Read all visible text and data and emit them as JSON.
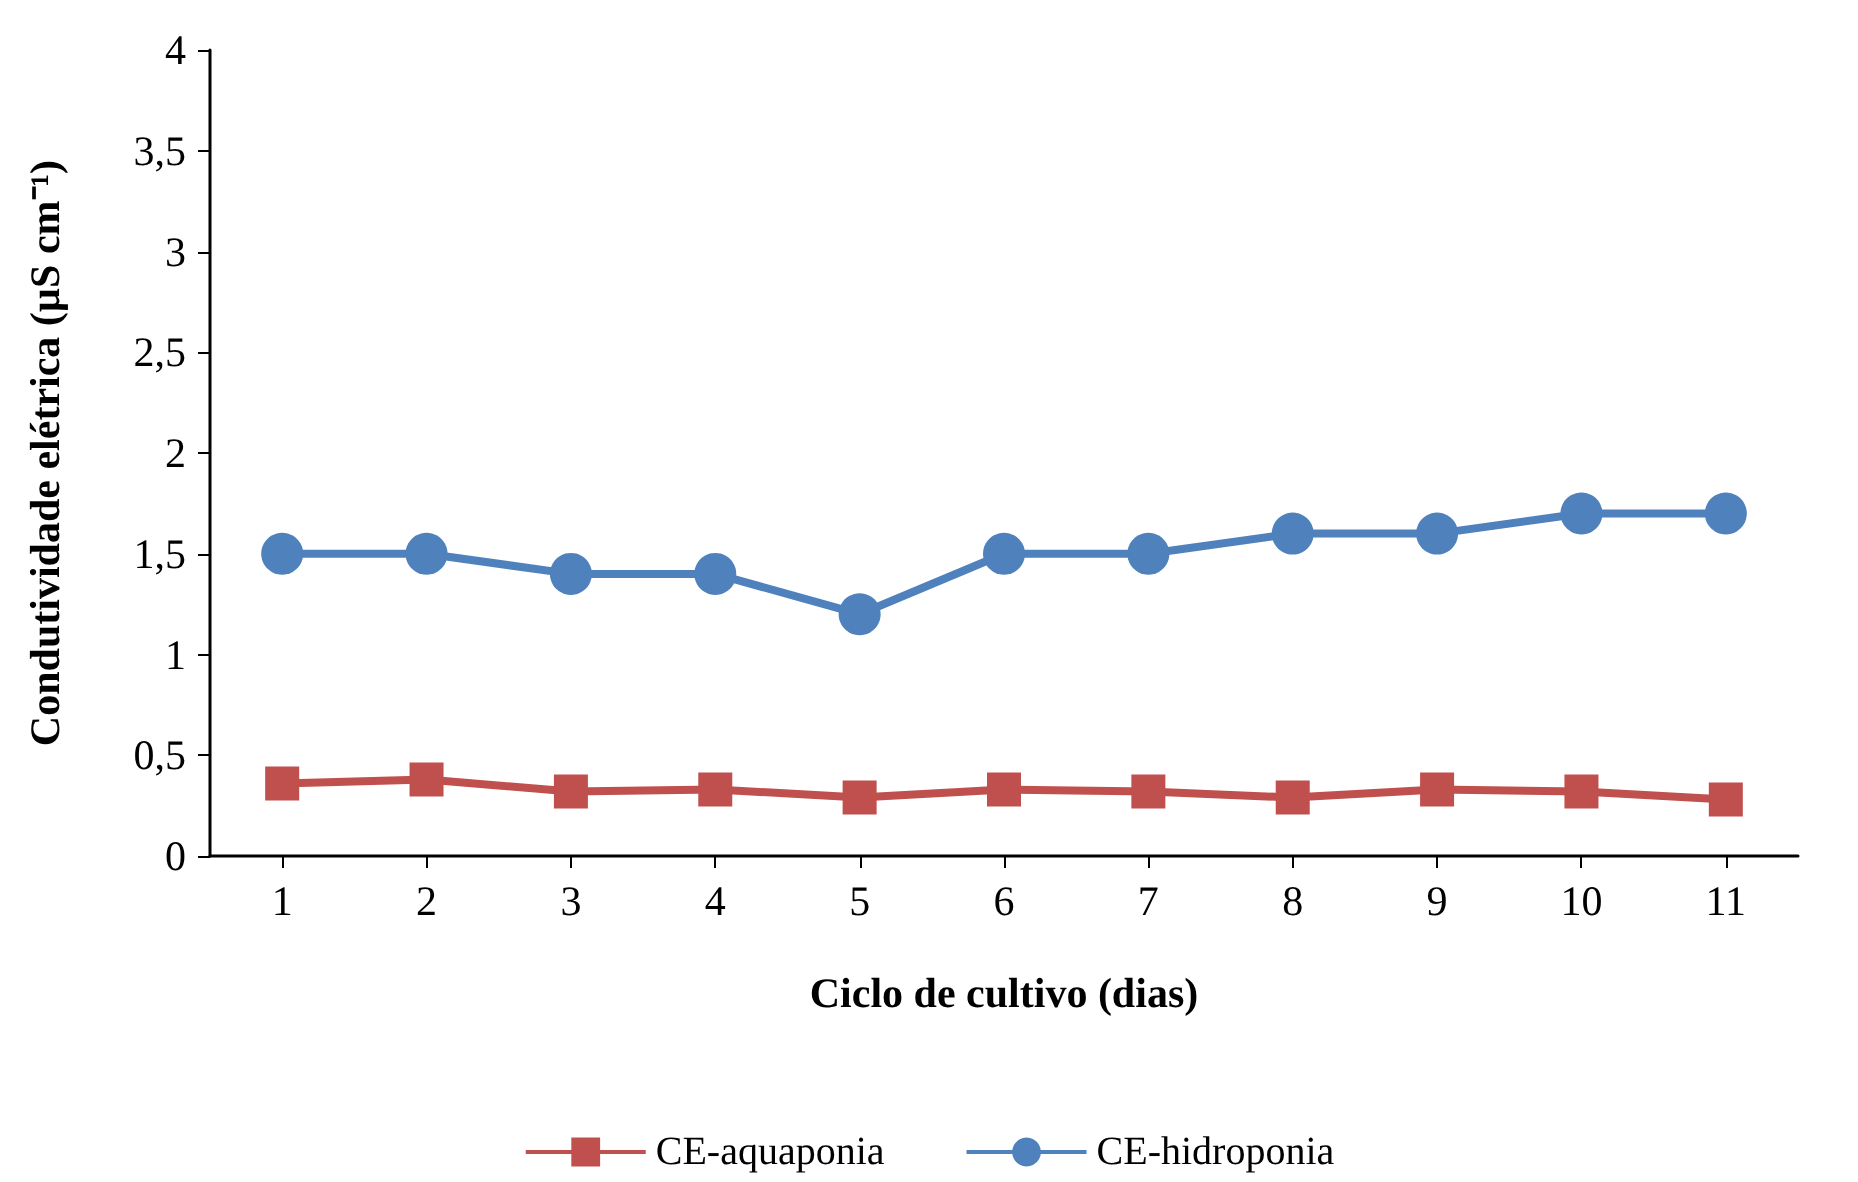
{
  "chart_data": {
    "type": "line",
    "xlabel": "Ciclo de cultivo (dias)",
    "ylabel": "Condutividade elétrica (µS cm⁻¹)",
    "categories": [
      "1",
      "2",
      "3",
      "4",
      "5",
      "6",
      "7",
      "8",
      "9",
      "10",
      "11"
    ],
    "series": [
      {
        "name": "CE-aquaponia",
        "color": "#c0504d",
        "marker": "square",
        "values": [
          0.36,
          0.38,
          0.32,
          0.33,
          0.29,
          0.33,
          0.32,
          0.29,
          0.33,
          0.32,
          0.28
        ]
      },
      {
        "name": "CE-hidroponia",
        "color": "#4f81bd",
        "marker": "circle",
        "values": [
          1.5,
          1.5,
          1.4,
          1.4,
          1.2,
          1.5,
          1.5,
          1.6,
          1.6,
          1.7,
          1.7
        ]
      }
    ],
    "ylim": [
      0,
      4
    ],
    "yticks": [
      0,
      {
        "value": 0.5,
        "label": "0,5"
      },
      1,
      {
        "value": 1.5,
        "label": "1,5"
      },
      2,
      {
        "value": 2.5,
        "label": "2,5"
      },
      3,
      {
        "value": 3.5,
        "label": "3,5"
      },
      4
    ],
    "grid": false,
    "legend": "bottom"
  }
}
